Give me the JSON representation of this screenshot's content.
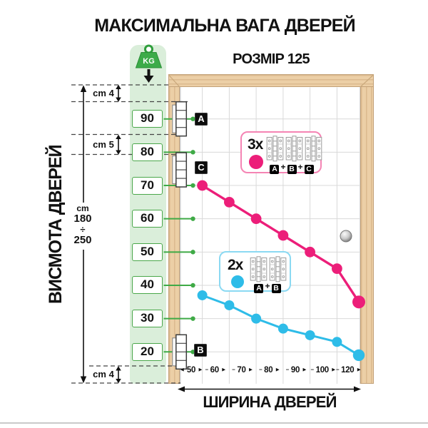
{
  "title": "МАКСИМАЛЬНА ВАГА ДВЕРЕЙ",
  "subtitle": "РОЗМІР 125",
  "vertical_axis_label": "ВИСМОТА ДВЕРЕЙ",
  "horizontal_axis_label": "ШИРИНА ДВЕРЕЙ",
  "weight_icon": {
    "label": "KG"
  },
  "dimension_annotations": {
    "top_gap": "cm 4",
    "middle_gap": "cm 5",
    "bottom_gap": "cm 4",
    "height_range": {
      "unit": "cm",
      "min": "180",
      "divider": "÷",
      "max": "250"
    }
  },
  "weight_scale_kg": [
    90,
    80,
    70,
    60,
    50,
    40,
    30,
    20
  ],
  "hinge_markers": [
    {
      "label": "A",
      "position": "top"
    },
    {
      "label": "C",
      "position": "middle"
    },
    {
      "label": "B",
      "position": "bottom"
    }
  ],
  "legends": [
    {
      "multiplier": "3x",
      "dot_color": "#ec1e79",
      "border_color": "#f584b4",
      "hinge_count": 3,
      "formula": [
        "A",
        "B",
        "C"
      ]
    },
    {
      "multiplier": "2x",
      "dot_color": "#2ebce8",
      "border_color": "#8bd9f2",
      "hinge_count": 2,
      "formula": [
        "A",
        "B"
      ]
    }
  ],
  "chart_data": {
    "type": "line",
    "title": "МАКСИМАЛЬНА ВАГА ДВЕРЕЙ — РОЗМІР 125",
    "x": [
      50,
      60,
      70,
      80,
      90,
      100,
      120
    ],
    "xlabel": "ШИРИНА ДВЕРЕЙ",
    "ylabel": "KG",
    "y_scale_ticks": [
      90,
      80,
      70,
      60,
      50,
      40,
      30,
      20
    ],
    "ylim": [
      15,
      95
    ],
    "grid": true,
    "legend_position": "inside",
    "series": [
      {
        "name": "3x (A+B+C)",
        "color": "#ec1e79",
        "values": [
          70,
          65,
          60,
          55,
          50,
          45,
          35
        ]
      },
      {
        "name": "2x (A+B)",
        "color": "#2ebce8",
        "values": [
          37,
          34,
          30,
          27,
          25,
          23,
          19
        ]
      }
    ]
  },
  "colors": {
    "green_line": "#3faa46",
    "strip_bg": "#daeeda",
    "wood": "#eccfa6",
    "grid": "#d9d9d9",
    "pink": "#ec1e79",
    "cyan": "#2ebce8"
  }
}
